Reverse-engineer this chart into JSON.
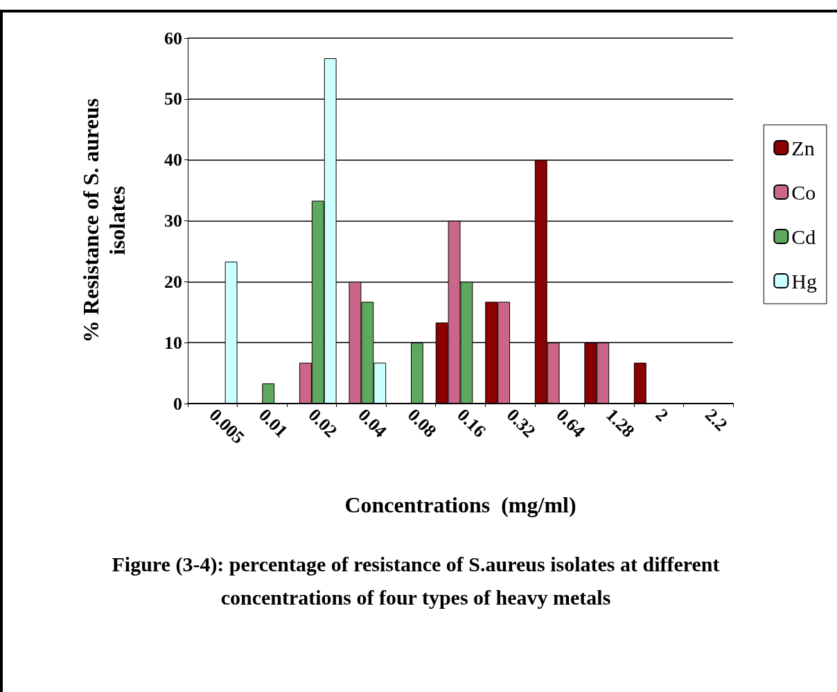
{
  "chart_data": {
    "type": "bar",
    "title": "Figure (3-4): percentage of resistance of S.aureus  isolates at different concentrations of four types of heavy metals",
    "xlabel": "Concentrations  (mg/ml)",
    "ylabel": "% Resistance of S. aureus isolates",
    "categories": [
      "0.005",
      "0.01",
      "0.02",
      "0.04",
      "0.08",
      "0.16",
      "0.32",
      "0.64",
      "1.28",
      "2",
      "2.2"
    ],
    "series": [
      {
        "name": "Zn",
        "color": "#8b0000",
        "values": [
          null,
          null,
          null,
          null,
          null,
          13.3,
          16.7,
          40,
          10,
          6.7,
          null
        ]
      },
      {
        "name": "Co",
        "color": "#cc6688",
        "values": [
          null,
          null,
          6.7,
          20,
          null,
          30,
          16.7,
          10,
          10,
          null,
          null
        ]
      },
      {
        "name": "Cd",
        "color": "#5fa85f",
        "values": [
          null,
          3.3,
          33.3,
          16.7,
          10,
          20,
          null,
          null,
          null,
          null,
          null
        ]
      },
      {
        "name": "Hg",
        "color": "#ccffff",
        "values": [
          23.3,
          null,
          56.7,
          6.7,
          null,
          null,
          null,
          null,
          null,
          null,
          null
        ]
      }
    ],
    "ylim": [
      0,
      60
    ],
    "yticks": [
      0,
      10,
      20,
      30,
      40,
      50,
      60
    ],
    "grid": "y",
    "legend": "right"
  }
}
